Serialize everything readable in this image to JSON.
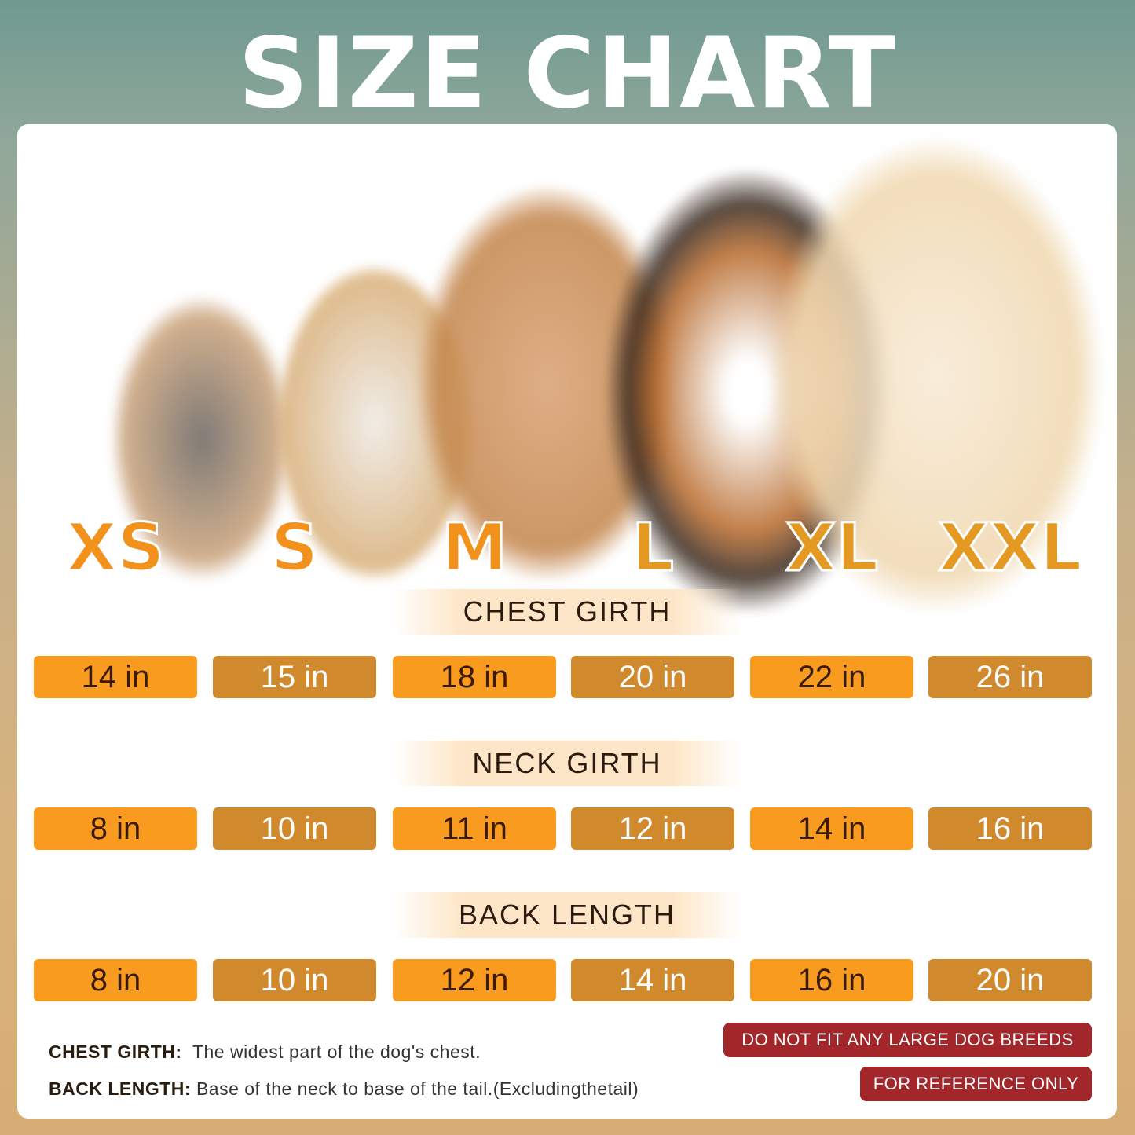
{
  "title": "SIZE CHART",
  "sizes": [
    "XS",
    "S",
    "M",
    "L",
    "XL",
    "XXL"
  ],
  "colors": {
    "orange": "#F89B1E",
    "dark_orange": "#D08A2D",
    "warning_red": "#A3262A"
  },
  "sections": [
    {
      "label": "CHEST GIRTH",
      "values": [
        "14 in",
        "15 in",
        "18 in",
        "20 in",
        "22 in",
        "26 in"
      ]
    },
    {
      "label": "NECK GIRTH",
      "values": [
        "8 in",
        "10 in",
        "11 in",
        "12 in",
        "14 in",
        "16 in"
      ]
    },
    {
      "label": "BACK LENGTH",
      "values": [
        "8 in",
        "10 in",
        "12 in",
        "14 in",
        "16 in",
        "20 in"
      ]
    }
  ],
  "notes": [
    {
      "term": "CHEST GIRTH:",
      "text": "The widest part of the dog's chest."
    },
    {
      "term": "BACK LENGTH:",
      "text": "Base of the neck to base of the tail.(Excludingthetail)"
    }
  ],
  "warnings": [
    "DO NOT FIT ANY LARGE DOG BREEDS",
    "FOR REFERENCE ONLY"
  ]
}
